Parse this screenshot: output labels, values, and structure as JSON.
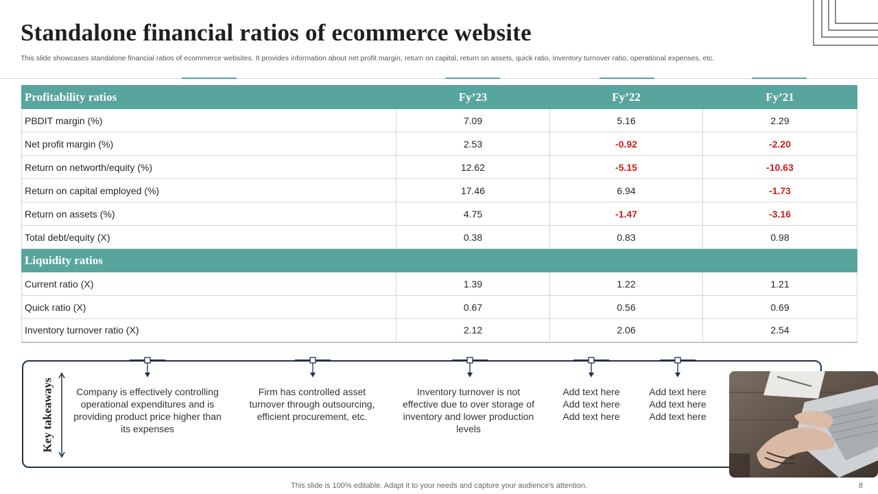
{
  "header": {
    "title": "Standalone financial ratios of ecommerce website",
    "subtitle": "This slide showcases standalone financial ratios of ecommerce websites. It provides information about  net profit margin, return on capital, return on assets, quick ratio, inventory turnover ratio, operational expenses, etc."
  },
  "table": {
    "columns": [
      "Fy’23",
      "Fy’22",
      "Fy’21"
    ],
    "profitability": {
      "label": "Profitability ratios",
      "rows": [
        {
          "label": "PBDIT margin (%)",
          "v": [
            "7.09",
            "5.16",
            "2.29"
          ]
        },
        {
          "label": "Net profit margin (%)",
          "v": [
            "2.53",
            "-0.92",
            "-2.20"
          ]
        },
        {
          "label": "Return on networth/equity (%)",
          "v": [
            "12.62",
            "-5.15",
            "-10.63"
          ]
        },
        {
          "label": "Return on capital employed (%)",
          "v": [
            "17.46",
            "6.94",
            "-1.73"
          ]
        },
        {
          "label": "Return on assets (%)",
          "v": [
            "4.75",
            "-1.47",
            "-3.16"
          ]
        },
        {
          "label": "Total debt/equity (X)",
          "v": [
            "0.38",
            "0.83",
            "0.98"
          ]
        }
      ]
    },
    "liquidity": {
      "label": "Liquidity  ratios",
      "rows": [
        {
          "label": "Current ratio (X)",
          "v": [
            "1.39",
            "1.22",
            "1.21"
          ]
        },
        {
          "label": "Quick ratio  (X)",
          "v": [
            "0.67",
            "0.56",
            "0.69"
          ]
        },
        {
          "label": "Inventory turnover ratio (X)",
          "v": [
            "2.12",
            "2.06",
            "2.54"
          ]
        }
      ]
    }
  },
  "takeaways": {
    "label": "Key takeaways",
    "items": [
      "Company is effectively controlling operational expenditures and is providing product price higher than its expenses",
      "Firm has controlled asset turnover through outsourcing, efficient procurement, etc.",
      "Inventory turnover is not effective due to over storage of inventory and lower production levels",
      "Add text here\nAdd text here\nAdd text here",
      "Add text here\nAdd text here\nAdd text here"
    ]
  },
  "footer": {
    "note": "This slide is 100% editable. Adapt it to your needs and capture your audience's attention.",
    "page": "8"
  },
  "colors": {
    "header_teal": "#57a59d",
    "negative_red": "#d11a1a",
    "box_border": "#1f3247"
  },
  "icons": [
    "corner-frame-icon",
    "double-arrow-icon",
    "connector-arrow-icon",
    "laptop-photo"
  ]
}
